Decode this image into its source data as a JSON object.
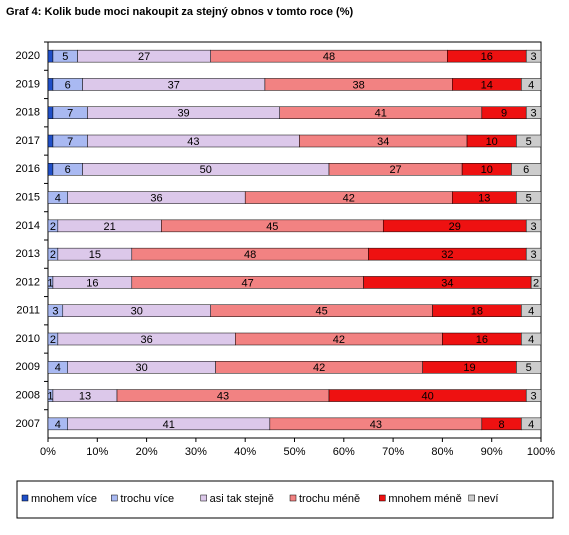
{
  "chart_data": {
    "type": "stacked-bar-horizontal",
    "title": "Graf 4: Kolik bude moci nakoupit za stejný obnos v tomto roce (%)",
    "categories": [
      "2020",
      "2019",
      "2018",
      "2017",
      "2016",
      "2015",
      "2014",
      "2013",
      "2012",
      "2011",
      "2010",
      "2009",
      "2008",
      "2007"
    ],
    "series": [
      {
        "name": "mnohem více",
        "color": "#1f4fc8",
        "values": [
          1,
          1,
          1,
          1,
          1,
          0,
          0,
          0,
          0,
          0,
          0,
          0,
          0,
          0
        ]
      },
      {
        "name": "trochu více",
        "color": "#a9b9f2",
        "values": [
          5,
          6,
          7,
          7,
          6,
          4,
          2,
          2,
          1,
          3,
          2,
          4,
          1,
          4
        ]
      },
      {
        "name": "asi tak stejně",
        "color": "#dcc8ea",
        "values": [
          27,
          37,
          39,
          43,
          50,
          36,
          21,
          15,
          16,
          30,
          36,
          30,
          13,
          41
        ]
      },
      {
        "name": "trochu méně",
        "color": "#f28282",
        "values": [
          48,
          38,
          41,
          34,
          27,
          42,
          45,
          48,
          47,
          45,
          42,
          42,
          43,
          43
        ]
      },
      {
        "name": "mnohem méně",
        "color": "#ee1111",
        "values": [
          16,
          14,
          9,
          10,
          10,
          13,
          29,
          32,
          34,
          18,
          16,
          19,
          40,
          8
        ]
      },
      {
        "name": "neví",
        "color": "#cccccc",
        "values": [
          3,
          4,
          3,
          5,
          6,
          5,
          3,
          3,
          2,
          4,
          4,
          5,
          3,
          4
        ]
      }
    ],
    "show_labels_from_series": 1,
    "xlim": [
      0,
      100
    ],
    "xticks": [
      {
        "value": 0,
        "label": "0%"
      },
      {
        "value": 10,
        "label": "10%"
      },
      {
        "value": 20,
        "label": "20%"
      },
      {
        "value": 30,
        "label": "30%"
      },
      {
        "value": 40,
        "label": "40%"
      },
      {
        "value": 50,
        "label": "50%"
      },
      {
        "value": 60,
        "label": "60%"
      },
      {
        "value": 70,
        "label": "70%"
      },
      {
        "value": 80,
        "label": "80%"
      },
      {
        "value": 90,
        "label": "90%"
      },
      {
        "value": 100,
        "label": "100%"
      }
    ]
  }
}
